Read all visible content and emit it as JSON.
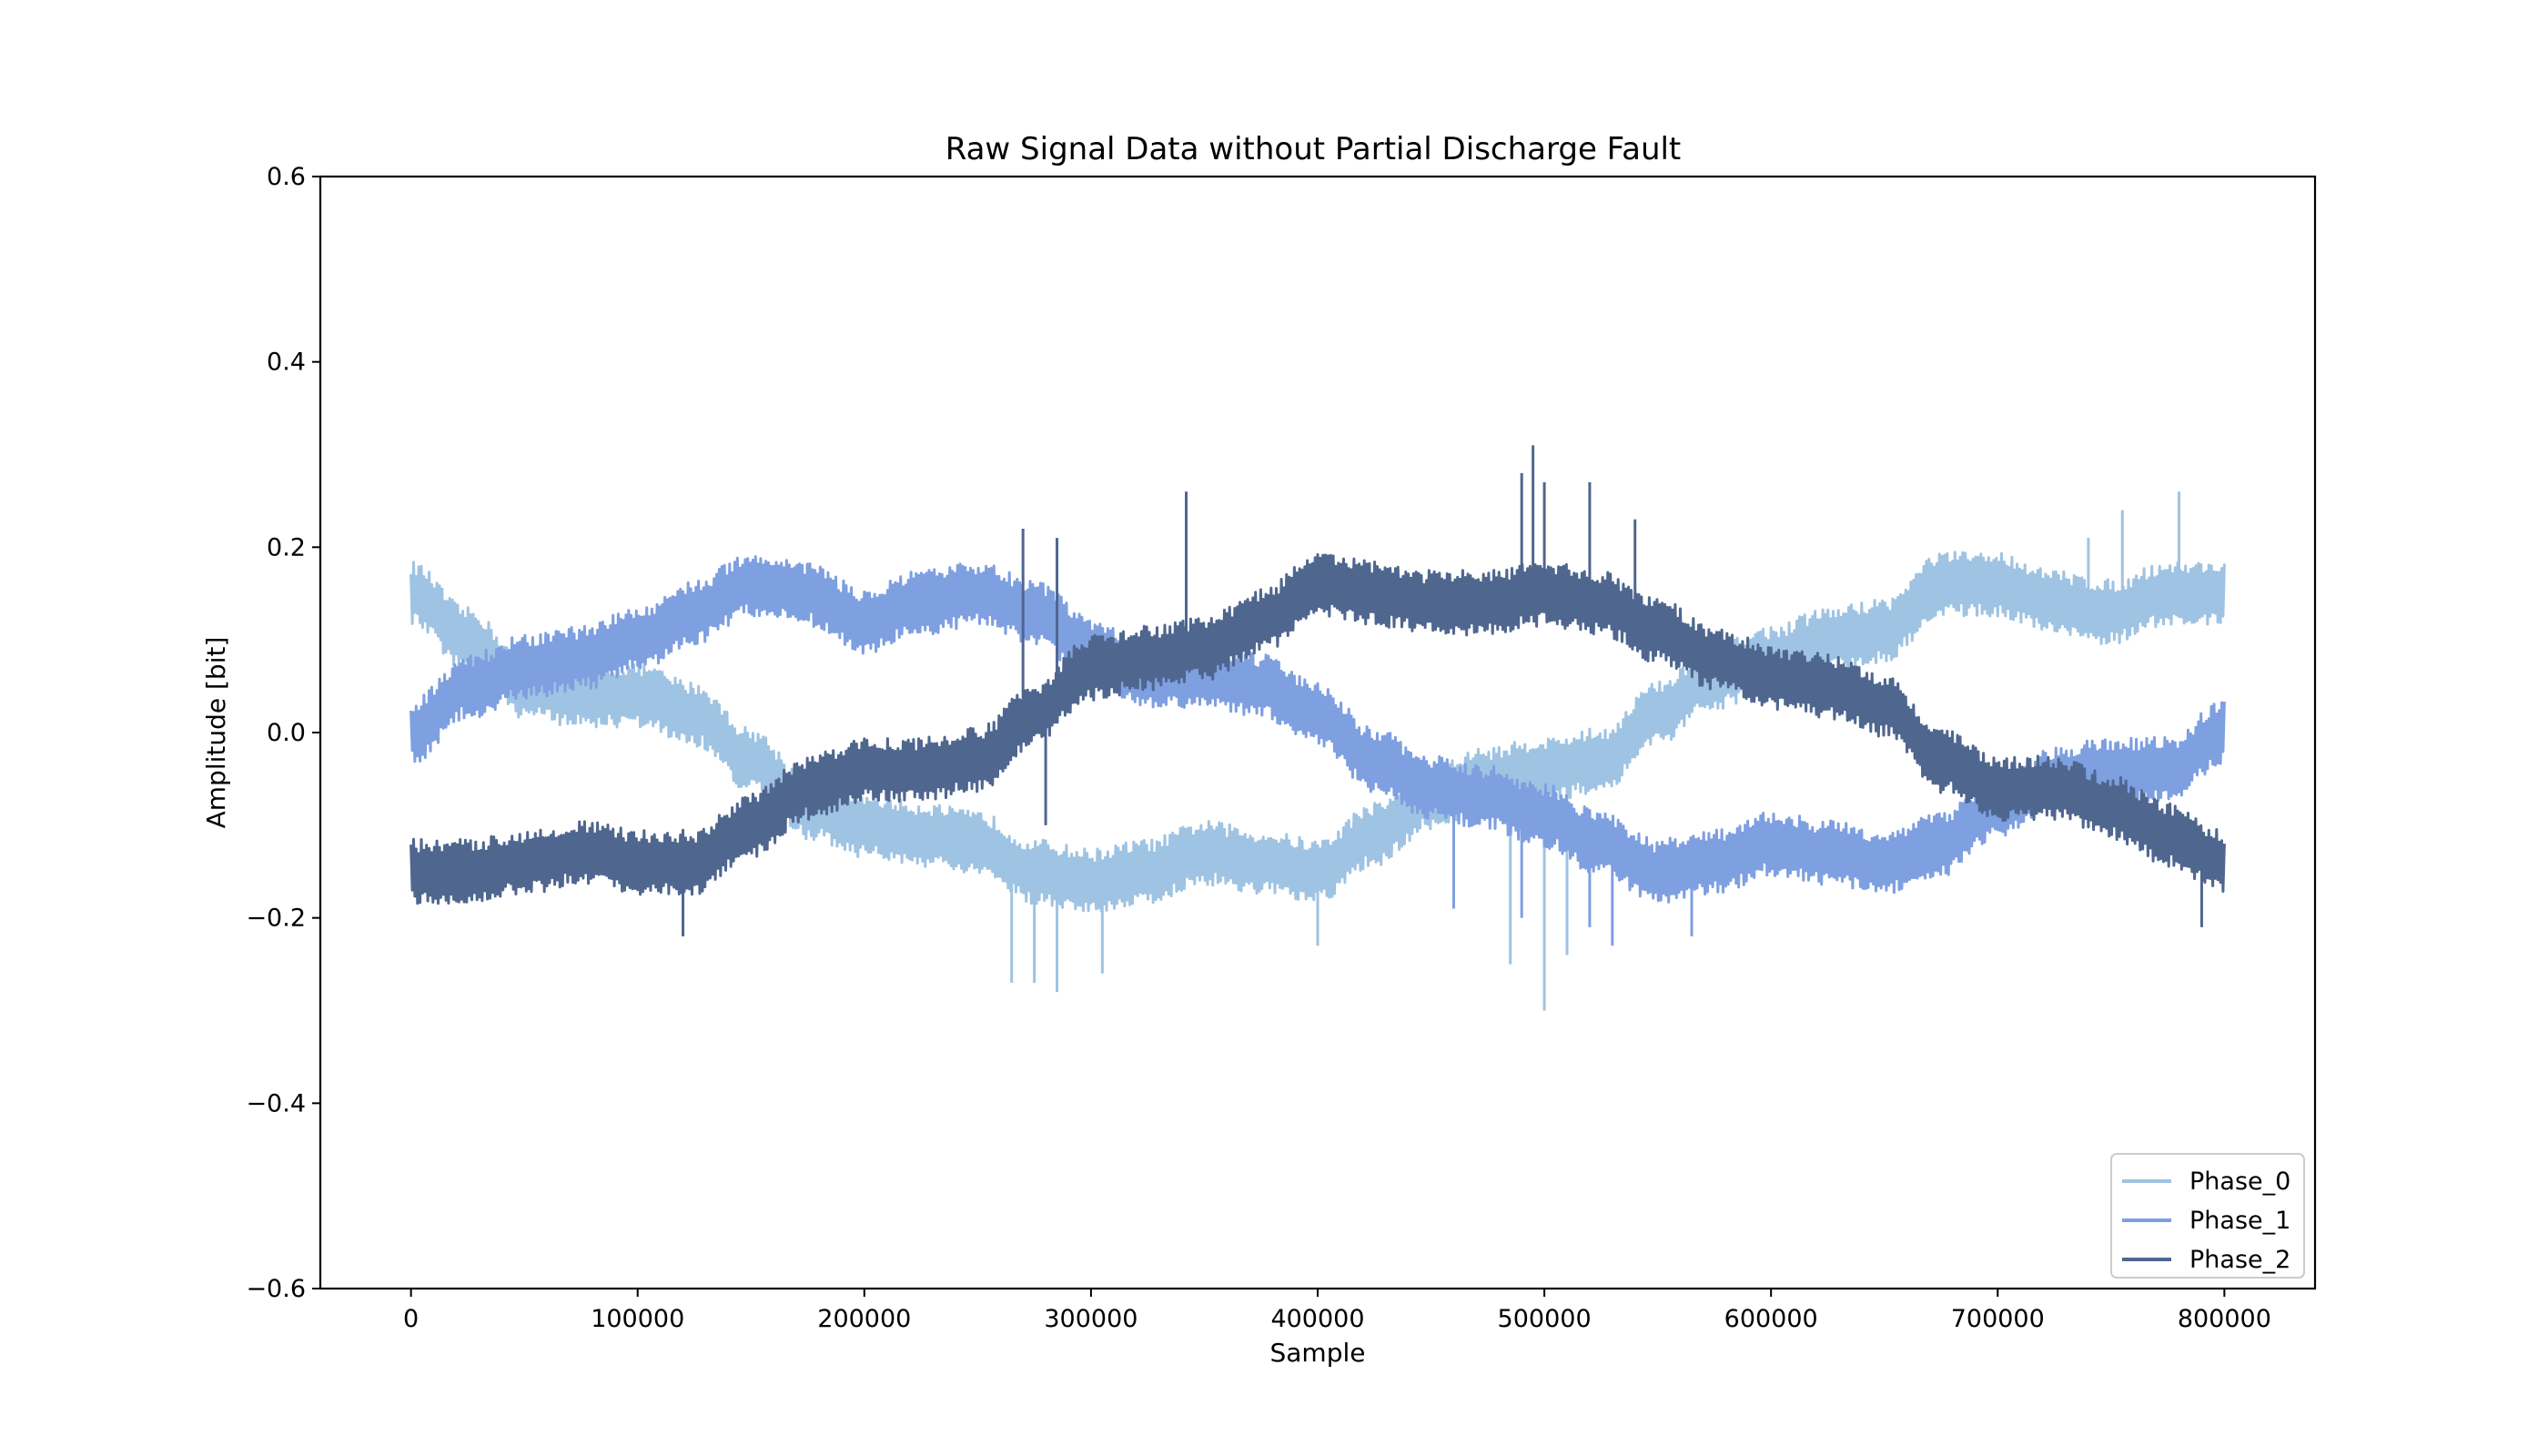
{
  "chart_data": {
    "type": "line",
    "title": "Raw Signal Data without Partial Discharge Fault",
    "xlabel": "Sample",
    "ylabel": "Amplitude [bit]",
    "xlim": [
      -40000,
      840000
    ],
    "ylim": [
      -0.6,
      0.6
    ],
    "xticks": [
      0,
      100000,
      200000,
      300000,
      400000,
      500000,
      600000,
      700000,
      800000
    ],
    "xtick_labels": [
      "0",
      "100000",
      "200000",
      "300000",
      "400000",
      "500000",
      "600000",
      "700000",
      "800000"
    ],
    "yticks": [
      -0.6,
      -0.4,
      -0.2,
      0.0,
      0.2,
      0.4,
      0.6
    ],
    "ytick_labels": [
      "−0.6",
      "−0.4",
      "−0.2",
      "0.0",
      "0.2",
      "0.4",
      "0.6"
    ],
    "legend_position": "bottom-right",
    "grid": false,
    "series": [
      {
        "name": "Phase_0",
        "color": "#9fc3e2",
        "noise_band": 0.035,
        "x": [
          0,
          25000,
          50000,
          75000,
          100000,
          125000,
          150000,
          175000,
          200000,
          225000,
          250000,
          275000,
          300000,
          325000,
          350000,
          375000,
          400000,
          425000,
          450000,
          475000,
          500000,
          525000,
          550000,
          575000,
          600000,
          625000,
          650000,
          675000,
          700000,
          725000,
          750000,
          775000,
          800000
        ],
        "y": [
          0.15,
          0.1,
          0.05,
          0.04,
          0.04,
          0.02,
          -0.03,
          -0.08,
          -0.1,
          -0.11,
          -0.12,
          -0.15,
          -0.16,
          -0.15,
          -0.13,
          -0.14,
          -0.15,
          -0.11,
          -0.07,
          -0.05,
          -0.04,
          -0.03,
          0.02,
          0.06,
          0.08,
          0.1,
          0.11,
          0.16,
          0.16,
          0.14,
          0.13,
          0.15,
          0.15
        ],
        "spikes": [
          {
            "x": 265000,
            "y": -0.27
          },
          {
            "x": 275000,
            "y": -0.27
          },
          {
            "x": 285000,
            "y": -0.28
          },
          {
            "x": 305000,
            "y": -0.26
          },
          {
            "x": 400000,
            "y": -0.23
          },
          {
            "x": 485000,
            "y": -0.25
          },
          {
            "x": 500000,
            "y": -0.3
          },
          {
            "x": 510000,
            "y": -0.24
          },
          {
            "x": 755000,
            "y": 0.24
          },
          {
            "x": 780000,
            "y": 0.26
          },
          {
            "x": 740000,
            "y": 0.21
          }
        ]
      },
      {
        "name": "Phase_1",
        "color": "#7e9fe0",
        "noise_band": 0.035,
        "x": [
          0,
          25000,
          50000,
          75000,
          100000,
          125000,
          150000,
          175000,
          200000,
          225000,
          250000,
          275000,
          300000,
          325000,
          350000,
          375000,
          400000,
          425000,
          450000,
          475000,
          500000,
          525000,
          550000,
          575000,
          600000,
          625000,
          650000,
          675000,
          700000,
          725000,
          750000,
          775000,
          800000
        ],
        "y": [
          0.0,
          0.05,
          0.07,
          0.08,
          0.1,
          0.13,
          0.16,
          0.15,
          0.12,
          0.14,
          0.15,
          0.13,
          0.09,
          0.06,
          0.06,
          0.05,
          0.02,
          -0.03,
          -0.06,
          -0.07,
          -0.09,
          -0.12,
          -0.15,
          -0.14,
          -0.12,
          -0.13,
          -0.14,
          -0.12,
          -0.08,
          -0.05,
          -0.04,
          -0.04,
          0.0
        ],
        "spikes": [
          {
            "x": 460000,
            "y": -0.19
          },
          {
            "x": 490000,
            "y": -0.2
          },
          {
            "x": 520000,
            "y": -0.21
          },
          {
            "x": 530000,
            "y": -0.23
          },
          {
            "x": 565000,
            "y": -0.22
          }
        ]
      },
      {
        "name": "Phase_2",
        "color": "#4f668f",
        "noise_band": 0.035,
        "x": [
          0,
          25000,
          50000,
          75000,
          100000,
          125000,
          150000,
          175000,
          200000,
          225000,
          250000,
          275000,
          300000,
          325000,
          350000,
          375000,
          400000,
          425000,
          450000,
          475000,
          500000,
          525000,
          550000,
          575000,
          600000,
          625000,
          650000,
          675000,
          700000,
          725000,
          750000,
          775000,
          800000
        ],
        "y": [
          -0.15,
          -0.15,
          -0.14,
          -0.13,
          -0.14,
          -0.14,
          -0.1,
          -0.06,
          -0.04,
          -0.04,
          -0.03,
          0.02,
          0.07,
          0.08,
          0.09,
          0.12,
          0.16,
          0.15,
          0.14,
          0.14,
          0.15,
          0.14,
          0.11,
          0.08,
          0.06,
          0.05,
          0.03,
          -0.03,
          -0.06,
          -0.06,
          -0.08,
          -0.11,
          -0.14
        ],
        "spikes": [
          {
            "x": 270000,
            "y": 0.22
          },
          {
            "x": 285000,
            "y": 0.21
          },
          {
            "x": 342000,
            "y": 0.26
          },
          {
            "x": 490000,
            "y": 0.28
          },
          {
            "x": 495000,
            "y": 0.31
          },
          {
            "x": 500000,
            "y": 0.27
          },
          {
            "x": 520000,
            "y": 0.27
          },
          {
            "x": 540000,
            "y": 0.23
          },
          {
            "x": 790000,
            "y": -0.21
          },
          {
            "x": 120000,
            "y": -0.22
          },
          {
            "x": 280000,
            "y": -0.1
          }
        ]
      }
    ]
  }
}
